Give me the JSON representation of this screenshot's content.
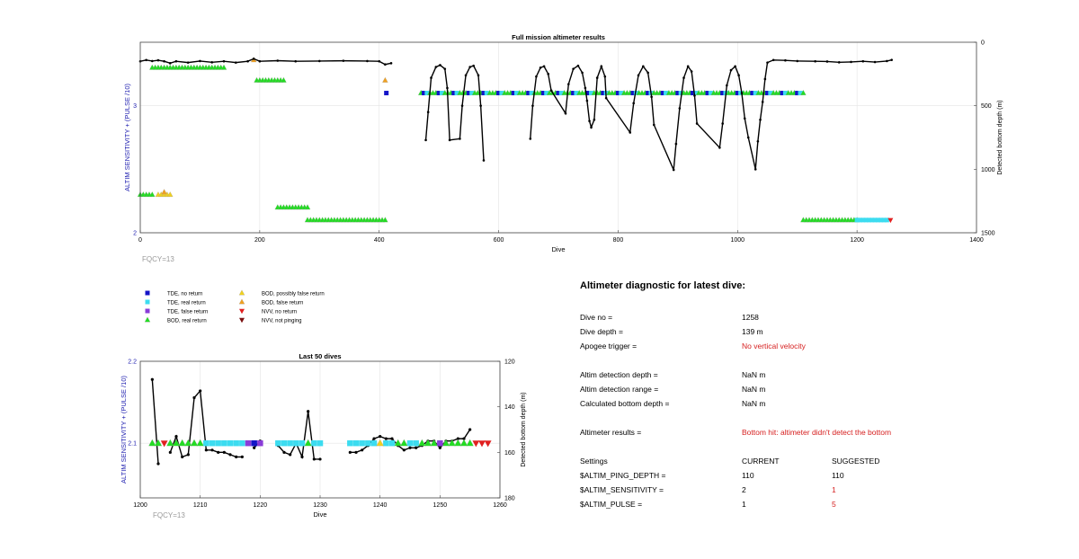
{
  "top_chart": {
    "title": "Full mission altimeter results",
    "xlabel": "Dive",
    "ylabel_left": "ALTIM SENSITIVITY + (PULSE /10)",
    "ylabel_right": "Detected bottom depth (m)",
    "x_ticks": [
      "0",
      "200",
      "400",
      "600",
      "800",
      "1000",
      "1200",
      "1400"
    ],
    "y_left_ticks": [
      "2",
      "3"
    ],
    "y_right_ticks": [
      "0",
      "500",
      "1000",
      "1500"
    ],
    "footnote": "FQCY=13"
  },
  "bottom_chart": {
    "title": "Last 50 dives",
    "xlabel": "Dive",
    "ylabel_left": "ALTIM SENSITIVITY + (PULSE /10)",
    "ylabel_right": "Detected bottom depth (m)",
    "x_ticks": [
      "1200",
      "1210",
      "1220",
      "1230",
      "1240",
      "1250",
      "1260"
    ],
    "y_left_ticks": [
      "2.1",
      "2.2"
    ],
    "y_right_ticks": [
      "120",
      "140",
      "160",
      "180"
    ],
    "footnote": "FQCY=13"
  },
  "legend": {
    "items": [
      {
        "label": "TDE, no return",
        "marker": "square",
        "color": "#1414c8"
      },
      {
        "label": "TDE, real return",
        "marker": "square",
        "color": "#3cdcf0"
      },
      {
        "label": "TDE, false return",
        "marker": "square",
        "color": "#8a3cd8"
      },
      {
        "label": "BOD, real return",
        "marker": "triangle-up",
        "color": "#22dd22"
      },
      {
        "label": "BOD, possibly false return",
        "marker": "triangle-up",
        "color": "#f0d020"
      },
      {
        "label": "BOD, false return",
        "marker": "triangle-up",
        "color": "#f0a020"
      },
      {
        "label": "NVV, no return",
        "marker": "triangle-down",
        "color": "#e02020"
      },
      {
        "label": "NVV, not pinging",
        "marker": "triangle-down",
        "color": "#7a1010"
      }
    ]
  },
  "diagnostic": {
    "heading": "Altimeter diagnostic for latest dive:",
    "rows": [
      {
        "label": "Dive no =",
        "value": "1258",
        "alert": false
      },
      {
        "label": "Dive depth =",
        "value": "139 m",
        "alert": false
      },
      {
        "label": "Apogee trigger =",
        "value": "No vertical velocity",
        "alert": true
      },
      {
        "label": "Altim detection depth =",
        "value": "NaN m",
        "alert": false
      },
      {
        "label": "Altim detection range =",
        "value": "NaN m",
        "alert": false
      },
      {
        "label": "Calculated bottom depth =",
        "value": "NaN m",
        "alert": false
      },
      {
        "label": "Altimeter results =",
        "value": "Bottom hit: altimeter didn't detect the bottom",
        "alert": true
      }
    ],
    "settings": {
      "header": {
        "name": "Settings",
        "current": "CURRENT",
        "suggested": "SUGGESTED"
      },
      "rows": [
        {
          "name": "$ALTIM_PING_DEPTH =",
          "current": "110",
          "suggested": "110",
          "changed": false
        },
        {
          "name": "$ALTIM_SENSITIVITY =",
          "current": "2",
          "suggested": "1",
          "changed": true
        },
        {
          "name": "$ALTIM_PULSE =",
          "current": "1",
          "suggested": "5",
          "changed": true
        }
      ]
    }
  },
  "chart_data": [
    {
      "type": "scatter",
      "title": "Full mission altimeter results",
      "xlabel": "Dive",
      "ylabel": "ALTIM SENSITIVITY + (PULSE /10)",
      "y2label": "Detected bottom depth (m)",
      "xlim": [
        0,
        1400
      ],
      "ylim": [
        2,
        3.5
      ],
      "y2lim": [
        0,
        1500
      ],
      "y2_reversed": true,
      "grid": true,
      "depth_line": [
        [
          0,
          150
        ],
        [
          10,
          140
        ],
        [
          20,
          148
        ],
        [
          30,
          142
        ],
        [
          40,
          150
        ],
        [
          50,
          165
        ],
        [
          60,
          150
        ],
        [
          80,
          160
        ],
        [
          100,
          148
        ],
        [
          120,
          158
        ],
        [
          140,
          150
        ],
        [
          160,
          160
        ],
        [
          180,
          150
        ],
        [
          190,
          130
        ],
        [
          200,
          150
        ],
        [
          230,
          145
        ],
        [
          260,
          150
        ],
        [
          300,
          148
        ],
        [
          340,
          146
        ],
        [
          380,
          148
        ],
        [
          400,
          150
        ],
        [
          410,
          175
        ],
        [
          420,
          165
        ],
        [
          478,
          770
        ],
        [
          482,
          550
        ],
        [
          487,
          280
        ],
        [
          495,
          195
        ],
        [
          502,
          180
        ],
        [
          510,
          210
        ],
        [
          514,
          360
        ],
        [
          518,
          770
        ],
        [
          535,
          760
        ],
        [
          539,
          500
        ],
        [
          545,
          260
        ],
        [
          552,
          195
        ],
        [
          558,
          185
        ],
        [
          566,
          260
        ],
        [
          570,
          500
        ],
        [
          575,
          930
        ],
        [
          653,
          760
        ],
        [
          657,
          500
        ],
        [
          663,
          270
        ],
        [
          670,
          200
        ],
        [
          676,
          190
        ],
        [
          683,
          250
        ],
        [
          688,
          380
        ],
        [
          712,
          560
        ],
        [
          717,
          330
        ],
        [
          725,
          210
        ],
        [
          733,
          185
        ],
        [
          740,
          240
        ],
        [
          745,
          360
        ],
        [
          748,
          460
        ],
        [
          752,
          620
        ],
        [
          755,
          670
        ],
        [
          760,
          610
        ],
        [
          765,
          280
        ],
        [
          772,
          190
        ],
        [
          778,
          270
        ],
        [
          780,
          440
        ],
        [
          820,
          710
        ],
        [
          826,
          480
        ],
        [
          834,
          260
        ],
        [
          842,
          190
        ],
        [
          850,
          240
        ],
        [
          856,
          430
        ],
        [
          860,
          650
        ],
        [
          893,
          1005
        ],
        [
          897,
          800
        ],
        [
          903,
          520
        ],
        [
          910,
          280
        ],
        [
          917,
          190
        ],
        [
          923,
          230
        ],
        [
          928,
          420
        ],
        [
          932,
          640
        ],
        [
          970,
          830
        ],
        [
          975,
          640
        ],
        [
          982,
          340
        ],
        [
          989,
          220
        ],
        [
          996,
          190
        ],
        [
          1002,
          260
        ],
        [
          1007,
          400
        ],
        [
          1012,
          600
        ],
        [
          1018,
          750
        ],
        [
          1030,
          1000
        ],
        [
          1034,
          780
        ],
        [
          1038,
          610
        ],
        [
          1042,
          470
        ],
        [
          1046,
          290
        ],
        [
          1050,
          160
        ],
        [
          1060,
          140
        ],
        [
          1080,
          143
        ],
        [
          1100,
          148
        ],
        [
          1130,
          150
        ],
        [
          1150,
          152
        ],
        [
          1170,
          158
        ],
        [
          1190,
          155
        ],
        [
          1210,
          150
        ],
        [
          1230,
          156
        ],
        [
          1250,
          148
        ],
        [
          1258,
          139
        ]
      ],
      "markers": [
        {
          "series": "BOD, real return",
          "x_start": 0,
          "x_end": 20,
          "y": 2.3,
          "stacked_with": "BOD, possibly false return",
          "note": "dense run"
        },
        {
          "series": "BOD, real return",
          "x_start": 20,
          "x_end": 140,
          "y": 3.3
        },
        {
          "series": "BOD, possibly false return",
          "x_start": 30,
          "x_end": 50,
          "y": 2.3
        },
        {
          "series": "BOD, false return",
          "x": 40,
          "y": 2.32
        },
        {
          "series": "BOD, false return",
          "x": 190,
          "y": 3.36
        },
        {
          "series": "BOD, real return",
          "x_start": 195,
          "x_end": 240,
          "y": 3.2
        },
        {
          "series": "BOD, real return",
          "x_start": 230,
          "x_end": 280,
          "y": 2.2
        },
        {
          "series": "BOD, real return",
          "x_start": 280,
          "x_end": 410,
          "y": 2.1
        },
        {
          "series": "BOD, false return",
          "x": 410,
          "y": 3.2
        },
        {
          "series": "TDE, no return",
          "x": 412,
          "y": 3.1
        },
        {
          "series": "TDE, no return",
          "x_start": 470,
          "x_end": 1110,
          "y": 3.1,
          "note": "mixed with BOD, real return and TDE, real return"
        },
        {
          "series": "BOD, real return",
          "x_start": 1110,
          "x_end": 1200,
          "y": 2.1
        },
        {
          "series": "TDE, real return",
          "x_start": 1200,
          "x_end": 1250,
          "y": 2.1
        },
        {
          "series": "NVV, no return",
          "x": 1256,
          "y": 2.1
        }
      ]
    },
    {
      "type": "scatter",
      "title": "Last 50 dives",
      "xlabel": "Dive",
      "ylabel": "ALTIM SENSITIVITY + (PULSE /10)",
      "y2label": "Detected bottom depth (m)",
      "xlim": [
        1200,
        1260
      ],
      "ylim": [
        2.0333,
        2.2
      ],
      "y2lim": [
        120,
        180
      ],
      "y2_reversed": true,
      "grid": true,
      "depth_line": [
        [
          1202,
          128
        ],
        [
          1203,
          165
        ],
        [
          1205,
          160
        ],
        [
          1206,
          153
        ],
        [
          1207,
          162
        ],
        [
          1208,
          161
        ],
        [
          1209,
          136
        ],
        [
          1210,
          133
        ],
        [
          1211,
          159
        ],
        [
          1212,
          159
        ],
        [
          1213,
          160
        ],
        [
          1214,
          160
        ],
        [
          1215,
          161
        ],
        [
          1216,
          162
        ],
        [
          1217,
          162
        ],
        [
          1219,
          158
        ],
        [
          1220,
          155
        ],
        [
          1223,
          157
        ],
        [
          1224,
          160
        ],
        [
          1225,
          161
        ],
        [
          1226,
          156
        ],
        [
          1227,
          162
        ],
        [
          1228,
          142
        ],
        [
          1229,
          163
        ],
        [
          1230,
          163
        ],
        [
          1235,
          160
        ],
        [
          1236,
          160
        ],
        [
          1237,
          159
        ],
        [
          1238,
          157
        ],
        [
          1239,
          154
        ],
        [
          1240,
          153
        ],
        [
          1241,
          154
        ],
        [
          1242,
          154
        ],
        [
          1243,
          157
        ],
        [
          1244,
          159
        ],
        [
          1245,
          158
        ],
        [
          1246,
          158
        ],
        [
          1247,
          157
        ],
        [
          1248,
          155
        ],
        [
          1249,
          155
        ],
        [
          1250,
          158
        ],
        [
          1251,
          155
        ],
        [
          1252,
          155
        ],
        [
          1253,
          154
        ],
        [
          1254,
          154
        ],
        [
          1255,
          150
        ]
      ],
      "markers": [
        {
          "series": "BOD, real return",
          "x": [
            1202,
            1203,
            1205,
            1206,
            1207,
            1208,
            1209,
            1210,
            1249,
            1251,
            1252,
            1253,
            1254,
            1255
          ],
          "y": 2.1
        },
        {
          "series": "NVV, no return",
          "x": [
            1204,
            1256,
            1257,
            1258
          ],
          "y": 2.1
        },
        {
          "series": "TDE, real return",
          "x": [
            1211,
            1212,
            1213,
            1214,
            1215,
            1216,
            1217,
            1223,
            1224,
            1225,
            1226,
            1227,
            1229,
            1230,
            1235,
            1236,
            1237,
            1238,
            1239,
            1241,
            1242,
            1245,
            1246
          ],
          "y": 2.1
        },
        {
          "series": "TDE, false return",
          "x": [
            1218,
            1220,
            1250
          ],
          "y": 2.1
        },
        {
          "series": "TDE, no return",
          "x": [
            1219
          ],
          "y": 2.1
        },
        {
          "series": "BOD, possibly false return",
          "x": [
            1240
          ],
          "y": 2.1
        },
        {
          "series": "BOD, real return",
          "x": [
            1228,
            1243,
            1244,
            1247,
            1248
          ],
          "y": 2.1
        }
      ]
    }
  ]
}
